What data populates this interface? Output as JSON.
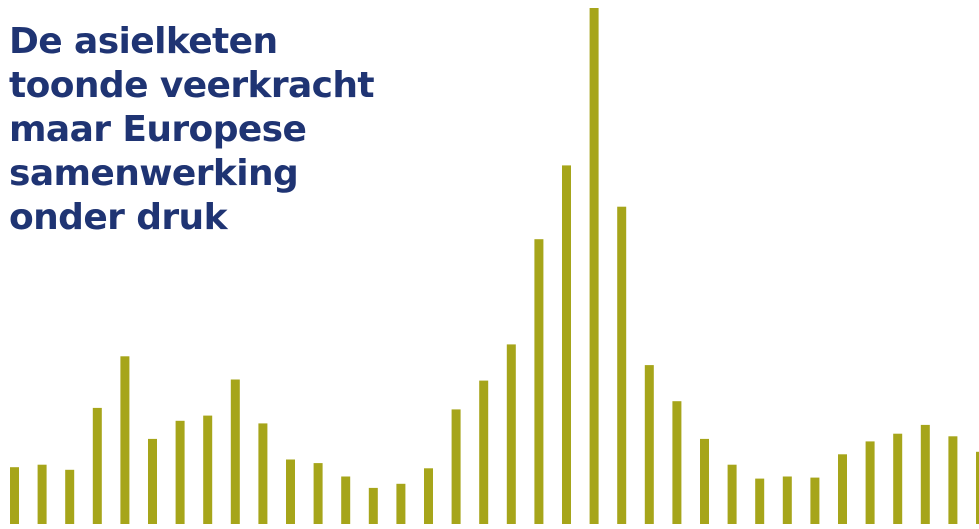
{
  "title_lines": [
    "De asielketen",
    "toonde veerkracht",
    "maar Europese",
    "samenwerking",
    "onder druk"
  ],
  "colors": {
    "title": "#1f3473",
    "bar": "#a6a51a",
    "background": "#ffffff"
  },
  "chart_data": {
    "type": "bar",
    "title": "De asielketen toonde veerkracht maar Europese samenwerking onder druk",
    "xlabel": "",
    "ylabel": "",
    "ylim": [
      0,
      100
    ],
    "grid": false,
    "legend": "none",
    "values": [
      11,
      11.5,
      10.5,
      22.5,
      32.5,
      16.5,
      20,
      21,
      28,
      19.5,
      12.5,
      11.8,
      9.2,
      7,
      7.8,
      10.8,
      22.2,
      27.8,
      34.8,
      55.2,
      69.5,
      100,
      61.5,
      30.8,
      23.8,
      16.5,
      11.5,
      8.8,
      9.2,
      9,
      13.5,
      16,
      17.5,
      19.2,
      17,
      14
    ]
  }
}
